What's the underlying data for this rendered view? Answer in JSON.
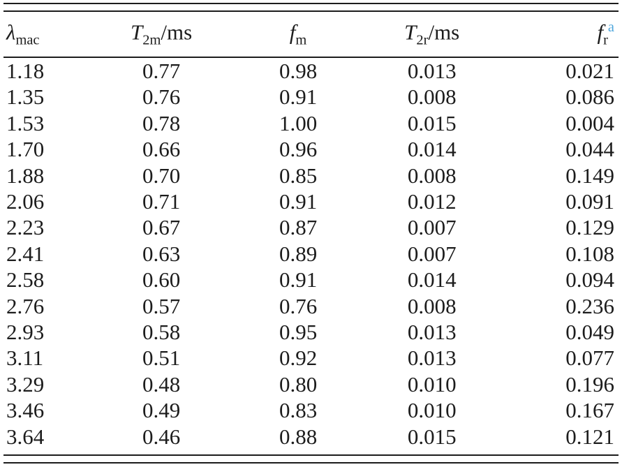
{
  "page": {
    "background": "#ffffff",
    "text_color": "#1c1c1c",
    "rule_color": "#1c1c1c",
    "footnote_marker_color": "#4ea6dc"
  },
  "table": {
    "columns": [
      {
        "var": "λ",
        "sub": "mac",
        "suffix": "",
        "sup": ""
      },
      {
        "var": "T",
        "sub": "2m",
        "suffix": "/ms",
        "sup": ""
      },
      {
        "var": "f",
        "sub": "m",
        "suffix": "",
        "sup": ""
      },
      {
        "var": "T",
        "sub": "2r",
        "suffix": "/ms",
        "sup": ""
      },
      {
        "var": "f",
        "sub": "r",
        "suffix": "",
        "sup": "a"
      }
    ],
    "rows": [
      [
        "1.18",
        "0.77",
        "0.98",
        "0.013",
        "0.021"
      ],
      [
        "1.35",
        "0.76",
        "0.91",
        "0.008",
        "0.086"
      ],
      [
        "1.53",
        "0.78",
        "1.00",
        "0.015",
        "0.004"
      ],
      [
        "1.70",
        "0.66",
        "0.96",
        "0.014",
        "0.044"
      ],
      [
        "1.88",
        "0.70",
        "0.85",
        "0.008",
        "0.149"
      ],
      [
        "2.06",
        "0.71",
        "0.91",
        "0.012",
        "0.091"
      ],
      [
        "2.23",
        "0.67",
        "0.87",
        "0.007",
        "0.129"
      ],
      [
        "2.41",
        "0.63",
        "0.89",
        "0.007",
        "0.108"
      ],
      [
        "2.58",
        "0.60",
        "0.91",
        "0.014",
        "0.094"
      ],
      [
        "2.76",
        "0.57",
        "0.76",
        "0.008",
        "0.236"
      ],
      [
        "2.93",
        "0.58",
        "0.95",
        "0.013",
        "0.049"
      ],
      [
        "3.11",
        "0.51",
        "0.92",
        "0.013",
        "0.077"
      ],
      [
        "3.29",
        "0.48",
        "0.80",
        "0.010",
        "0.196"
      ],
      [
        "3.46",
        "0.49",
        "0.83",
        "0.010",
        "0.167"
      ],
      [
        "3.64",
        "0.46",
        "0.88",
        "0.015",
        "0.121"
      ]
    ]
  }
}
